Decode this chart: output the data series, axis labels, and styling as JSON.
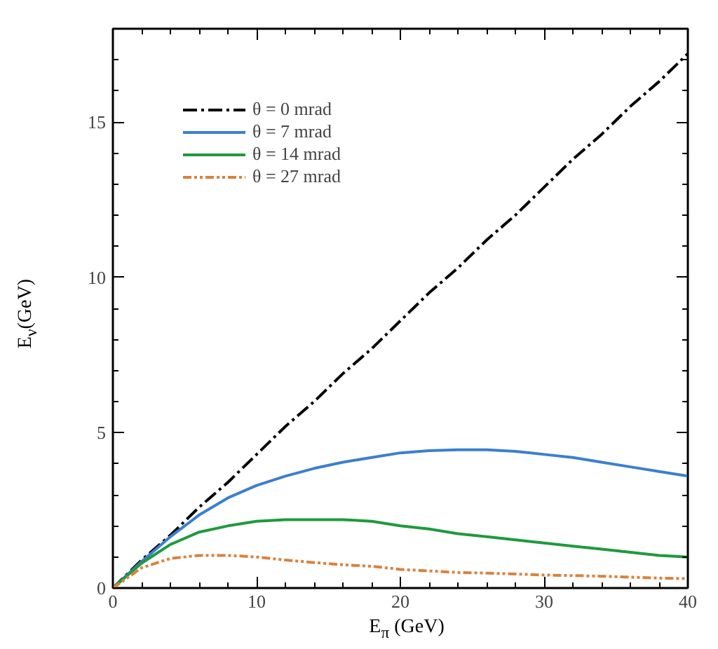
{
  "chart_data": {
    "type": "line",
    "xlabel": "E$_{π}$ (GeV)",
    "ylabel": "E$_{ν}$(GeV)",
    "x": [
      0,
      2,
      4,
      6,
      8,
      10,
      12,
      14,
      16,
      18,
      20,
      22,
      24,
      26,
      28,
      30,
      32,
      34,
      36,
      38,
      40
    ],
    "series": [
      {
        "name": "θ = 0 mrad",
        "color": "#000000",
        "line_style": "dashed",
        "values": [
          0,
          0.9,
          1.7,
          2.6,
          3.4,
          4.3,
          5.2,
          6.0,
          6.9,
          7.7,
          8.6,
          9.5,
          10.3,
          11.2,
          12.0,
          12.9,
          13.8,
          14.6,
          15.5,
          16.3,
          17.2
        ]
      },
      {
        "name": "θ = 7 mrad",
        "color": "#3b7fd0",
        "line_style": "solid",
        "values": [
          0,
          0.85,
          1.65,
          2.35,
          2.9,
          3.3,
          3.6,
          3.85,
          4.05,
          4.2,
          4.35,
          4.42,
          4.45,
          4.45,
          4.4,
          4.3,
          4.2,
          4.05,
          3.9,
          3.75,
          3.6
        ]
      },
      {
        "name": "θ = 14 mrad",
        "color": "#1f9a3c",
        "line_style": "solid",
        "values": [
          0,
          0.8,
          1.4,
          1.8,
          2.0,
          2.15,
          2.2,
          2.2,
          2.2,
          2.15,
          2.0,
          1.9,
          1.75,
          1.65,
          1.55,
          1.45,
          1.35,
          1.25,
          1.15,
          1.05,
          1.0
        ]
      },
      {
        "name": "θ = 27 mrad",
        "color": "#d9823e",
        "line_style": "dotted",
        "values": [
          0,
          0.65,
          0.95,
          1.05,
          1.05,
          1.0,
          0.9,
          0.82,
          0.75,
          0.7,
          0.6,
          0.55,
          0.5,
          0.48,
          0.45,
          0.42,
          0.4,
          0.38,
          0.35,
          0.32,
          0.3
        ]
      }
    ],
    "xlim": [
      0,
      40
    ],
    "xticks": [
      0,
      10,
      20,
      30,
      40
    ],
    "ylim": [
      0,
      18
    ],
    "yticks": [
      0,
      5,
      10,
      15
    ],
    "grid": false,
    "legend": "top left",
    "marker": "none"
  }
}
